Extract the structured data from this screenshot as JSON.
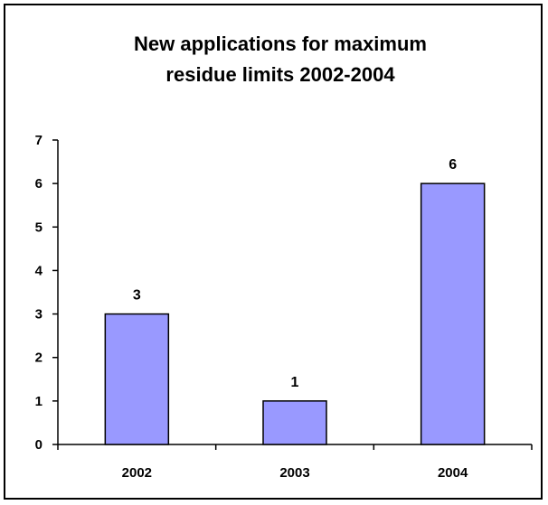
{
  "chart_data": {
    "type": "bar",
    "title_lines": [
      "New applications for maximum",
      "residue limits 2002-2004"
    ],
    "categories": [
      "2002",
      "2003",
      "2004"
    ],
    "values": [
      3,
      1,
      6
    ],
    "data_labels": [
      "3",
      "1",
      "6"
    ],
    "y_ticks": [
      "0",
      "1",
      "2",
      "3",
      "4",
      "5",
      "6",
      "7"
    ],
    "ylim": [
      0,
      7
    ],
    "xlabel": "",
    "ylabel": "",
    "grid": false,
    "legend": "none",
    "bar_color": "#9999FF",
    "bar_border_color": "#000000"
  }
}
